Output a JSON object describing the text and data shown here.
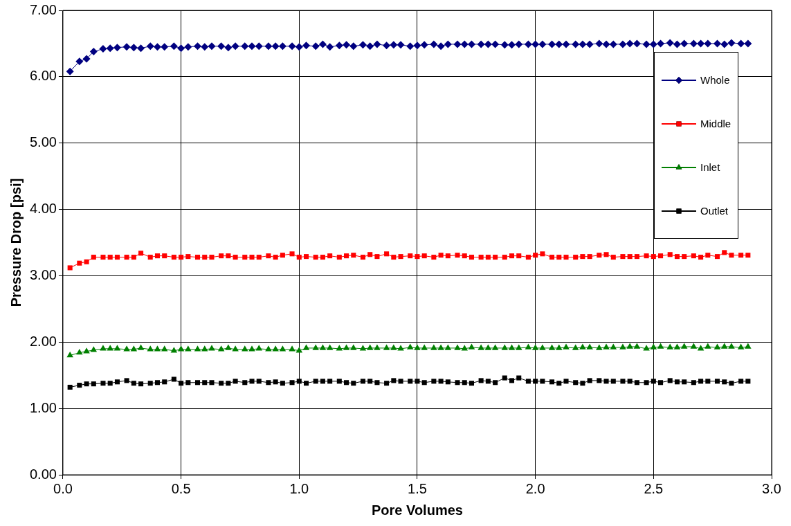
{
  "chart_data": {
    "type": "line",
    "xlabel": "Pore Volumes",
    "ylabel": "Pressure Drop [psi]",
    "x": [
      0.03,
      0.07,
      0.1,
      0.13,
      0.17,
      0.2,
      0.23,
      0.27,
      0.3,
      0.33,
      0.37,
      0.4,
      0.43,
      0.47,
      0.5,
      0.53,
      0.57,
      0.6,
      0.63,
      0.67,
      0.7,
      0.73,
      0.77,
      0.8,
      0.83,
      0.87,
      0.9,
      0.93,
      0.97,
      1.0,
      1.03,
      1.07,
      1.1,
      1.13,
      1.17,
      1.2,
      1.23,
      1.27,
      1.3,
      1.33,
      1.37,
      1.4,
      1.43,
      1.47,
      1.5,
      1.53,
      1.57,
      1.6,
      1.63,
      1.67,
      1.7,
      1.73,
      1.77,
      1.8,
      1.83,
      1.87,
      1.9,
      1.93,
      1.97,
      2.0,
      2.03,
      2.07,
      2.1,
      2.13,
      2.17,
      2.2,
      2.23,
      2.27,
      2.3,
      2.33,
      2.37,
      2.4,
      2.43,
      2.47,
      2.5,
      2.53,
      2.57,
      2.6,
      2.63,
      2.67,
      2.7,
      2.73,
      2.77,
      2.8,
      2.83,
      2.87,
      2.9
    ],
    "series": [
      {
        "name": "Whole",
        "color": "#000080",
        "marker": "diamond",
        "values": [
          6.08,
          6.23,
          6.27,
          6.38,
          6.42,
          6.43,
          6.44,
          6.45,
          6.44,
          6.43,
          6.46,
          6.45,
          6.45,
          6.46,
          6.43,
          6.45,
          6.46,
          6.45,
          6.46,
          6.46,
          6.44,
          6.46,
          6.46,
          6.46,
          6.46,
          6.46,
          6.46,
          6.46,
          6.46,
          6.45,
          6.47,
          6.46,
          6.49,
          6.45,
          6.47,
          6.48,
          6.46,
          6.48,
          6.46,
          6.49,
          6.47,
          6.48,
          6.48,
          6.46,
          6.47,
          6.48,
          6.49,
          6.46,
          6.49,
          6.49,
          6.49,
          6.49,
          6.49,
          6.49,
          6.49,
          6.48,
          6.48,
          6.49,
          6.49,
          6.49,
          6.49,
          6.49,
          6.49,
          6.49,
          6.49,
          6.49,
          6.49,
          6.5,
          6.49,
          6.49,
          6.49,
          6.5,
          6.5,
          6.49,
          6.49,
          6.5,
          6.51,
          6.49,
          6.5,
          6.5,
          6.5,
          6.5,
          6.5,
          6.49,
          6.51,
          6.5,
          6.5
        ]
      },
      {
        "name": "Middle",
        "color": "#ff0000",
        "marker": "square",
        "values": [
          3.12,
          3.19,
          3.21,
          3.28,
          3.28,
          3.28,
          3.28,
          3.28,
          3.28,
          3.34,
          3.28,
          3.3,
          3.3,
          3.28,
          3.28,
          3.29,
          3.28,
          3.28,
          3.28,
          3.3,
          3.3,
          3.28,
          3.28,
          3.28,
          3.28,
          3.3,
          3.28,
          3.31,
          3.33,
          3.28,
          3.29,
          3.28,
          3.28,
          3.3,
          3.28,
          3.3,
          3.31,
          3.28,
          3.32,
          3.29,
          3.33,
          3.28,
          3.29,
          3.3,
          3.29,
          3.3,
          3.28,
          3.31,
          3.3,
          3.31,
          3.3,
          3.28,
          3.28,
          3.28,
          3.28,
          3.28,
          3.3,
          3.3,
          3.28,
          3.31,
          3.33,
          3.28,
          3.28,
          3.28,
          3.28,
          3.29,
          3.29,
          3.31,
          3.32,
          3.28,
          3.29,
          3.29,
          3.29,
          3.3,
          3.29,
          3.3,
          3.32,
          3.29,
          3.29,
          3.3,
          3.28,
          3.31,
          3.29,
          3.35,
          3.31,
          3.31,
          3.31
        ]
      },
      {
        "name": "Inlet",
        "color": "#008000",
        "marker": "triangle",
        "values": [
          1.8,
          1.84,
          1.86,
          1.88,
          1.9,
          1.9,
          1.9,
          1.89,
          1.89,
          1.91,
          1.89,
          1.89,
          1.89,
          1.87,
          1.89,
          1.89,
          1.89,
          1.89,
          1.9,
          1.89,
          1.91,
          1.89,
          1.89,
          1.89,
          1.9,
          1.89,
          1.89,
          1.89,
          1.89,
          1.87,
          1.91,
          1.91,
          1.91,
          1.91,
          1.9,
          1.91,
          1.91,
          1.9,
          1.91,
          1.91,
          1.91,
          1.91,
          1.9,
          1.92,
          1.91,
          1.91,
          1.91,
          1.91,
          1.91,
          1.91,
          1.9,
          1.92,
          1.91,
          1.91,
          1.91,
          1.91,
          1.91,
          1.91,
          1.92,
          1.91,
          1.91,
          1.91,
          1.91,
          1.92,
          1.91,
          1.92,
          1.92,
          1.91,
          1.92,
          1.92,
          1.92,
          1.93,
          1.93,
          1.9,
          1.92,
          1.93,
          1.92,
          1.92,
          1.93,
          1.93,
          1.9,
          1.93,
          1.92,
          1.93,
          1.93,
          1.92,
          1.93
        ]
      },
      {
        "name": "Outlet",
        "color": "#000000",
        "marker": "square",
        "values": [
          1.32,
          1.35,
          1.37,
          1.37,
          1.38,
          1.38,
          1.4,
          1.42,
          1.38,
          1.37,
          1.38,
          1.39,
          1.4,
          1.44,
          1.38,
          1.39,
          1.39,
          1.39,
          1.39,
          1.38,
          1.38,
          1.41,
          1.39,
          1.41,
          1.41,
          1.39,
          1.4,
          1.38,
          1.39,
          1.41,
          1.38,
          1.41,
          1.41,
          1.41,
          1.41,
          1.39,
          1.38,
          1.41,
          1.41,
          1.39,
          1.38,
          1.42,
          1.41,
          1.41,
          1.41,
          1.39,
          1.41,
          1.41,
          1.4,
          1.39,
          1.39,
          1.38,
          1.42,
          1.41,
          1.39,
          1.46,
          1.42,
          1.46,
          1.41,
          1.41,
          1.41,
          1.4,
          1.38,
          1.41,
          1.39,
          1.38,
          1.42,
          1.42,
          1.41,
          1.41,
          1.41,
          1.41,
          1.39,
          1.39,
          1.41,
          1.39,
          1.42,
          1.4,
          1.4,
          1.39,
          1.41,
          1.41,
          1.41,
          1.4,
          1.38,
          1.41,
          1.41
        ]
      }
    ],
    "xlim": [
      0,
      3
    ],
    "xticks": [
      {
        "value": 0,
        "label": "0.0"
      },
      {
        "value": 0.5,
        "label": "0.5"
      },
      {
        "value": 1,
        "label": "1.0"
      },
      {
        "value": 1.5,
        "label": "1.5"
      },
      {
        "value": 2,
        "label": "2.0"
      },
      {
        "value": 2.5,
        "label": "2.5"
      },
      {
        "value": 3,
        "label": "3.0"
      }
    ],
    "ylim": [
      0,
      7
    ],
    "yticks": [
      {
        "value": 0,
        "label": "0.00"
      },
      {
        "value": 1,
        "label": "1.00"
      },
      {
        "value": 2,
        "label": "2.00"
      },
      {
        "value": 3,
        "label": "3.00"
      },
      {
        "value": 4,
        "label": "4.00"
      },
      {
        "value": 5,
        "label": "5.00"
      },
      {
        "value": 6,
        "label": "6.00"
      },
      {
        "value": 7,
        "label": "7.00"
      }
    ],
    "grid": true,
    "legend": "top right",
    "line_style": "solid"
  }
}
